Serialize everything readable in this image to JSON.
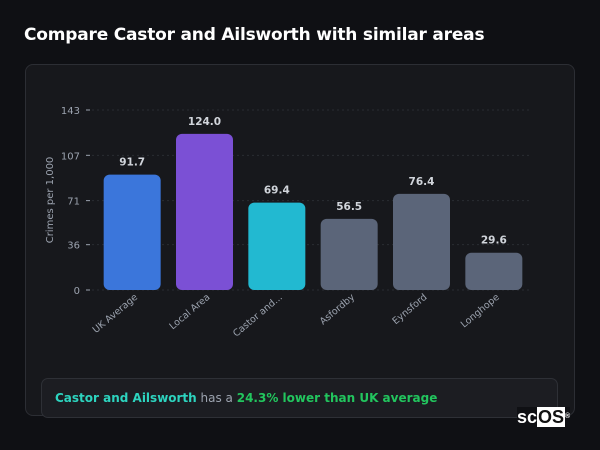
{
  "page_title": "Compare Castor and Ailsworth with similar areas",
  "chart_data": {
    "type": "bar",
    "ylabel": "Crimes per 1,000",
    "xlabel": "",
    "ylim": [
      0,
      143
    ],
    "yticks": [
      0,
      36,
      71,
      107,
      143
    ],
    "grid": true,
    "categories": [
      "UK Average",
      "Local Area",
      "Castor and...",
      "Asfordby",
      "Eynsford",
      "Longhope"
    ],
    "values": [
      91.7,
      124.0,
      69.4,
      56.5,
      76.4,
      29.6
    ],
    "data_labels": [
      "91.7",
      "124.0",
      "69.4",
      "56.5",
      "76.4",
      "29.6"
    ],
    "colors": [
      "#3b76db",
      "#7b50d5",
      "#22b9d1",
      "#5b6579",
      "#5b6579",
      "#5b6579"
    ]
  },
  "insight": {
    "place": "Castor and Ailsworth",
    "connector": " has a ",
    "difference": "24.3% lower than UK average"
  },
  "logo": {
    "text_a": "sc",
    "text_b": "OS",
    "mark": "®"
  }
}
